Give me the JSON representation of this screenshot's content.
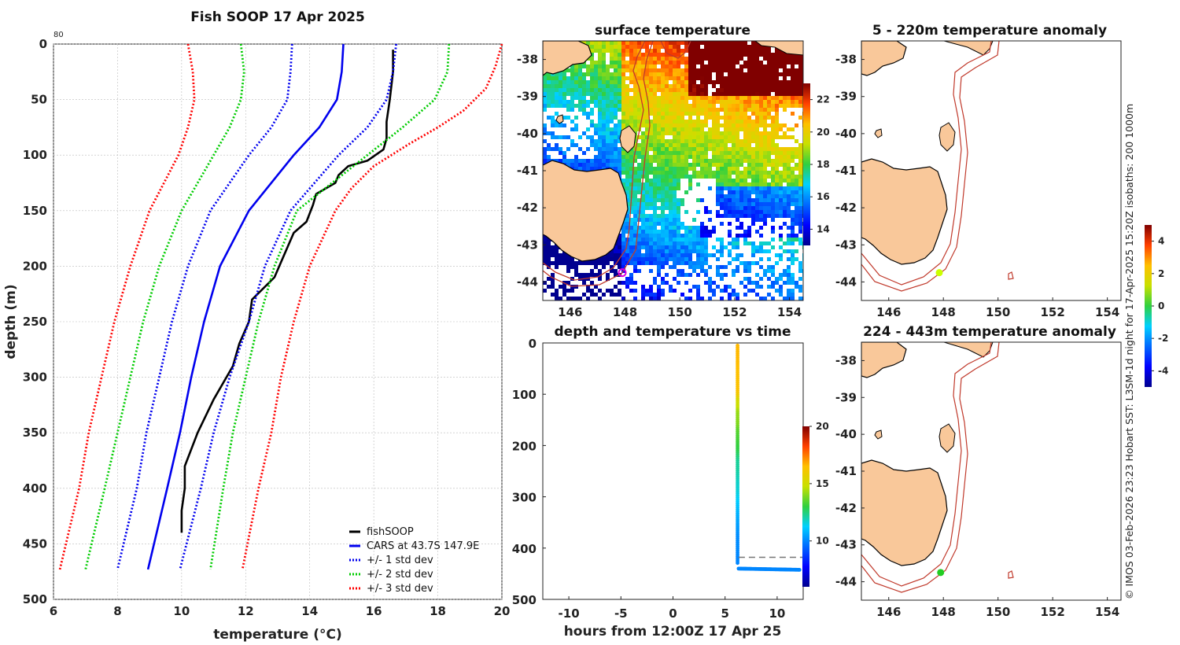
{
  "chart_data": [
    {
      "type": "line",
      "title": "Fish SOOP 17 Apr 2025",
      "xlabel": "temperature (°C)",
      "ylabel": "depth (m)",
      "xlim": [
        6,
        20
      ],
      "ylim": [
        0,
        500
      ],
      "y_reversed": true,
      "xticks": [
        "6",
        "8",
        "10",
        "12",
        "14",
        "16",
        "18",
        "20"
      ],
      "yticks": [
        "0",
        "50",
        "100",
        "150",
        "200",
        "250",
        "300",
        "350",
        "400",
        "450",
        "500"
      ],
      "corner_note": "80",
      "grid": true,
      "legend": [
        "fishSOOP",
        "CARS at 43.7S 147.9E",
        "+/- 1 std dev",
        "+/- 2 std dev",
        "+/- 3 std dev"
      ],
      "series": [
        {
          "name": "fishSOOP",
          "color": "#000000",
          "style": "solid",
          "depth": [
            5,
            25,
            50,
            70,
            85,
            95,
            105,
            110,
            118,
            125,
            135,
            145,
            160,
            170,
            190,
            210,
            230,
            250,
            270,
            290,
            320,
            350,
            380,
            400,
            420,
            440
          ],
          "temp": [
            16.6,
            16.6,
            16.5,
            16.4,
            16.4,
            16.3,
            15.8,
            15.2,
            14.9,
            14.8,
            14.2,
            14.1,
            13.9,
            13.5,
            13.2,
            12.9,
            12.2,
            12.1,
            11.8,
            11.6,
            11.0,
            10.5,
            10.1,
            10.1,
            10.0,
            10.0
          ]
        },
        {
          "name": "CARS at 43.7S 147.9E",
          "color": "#0000ee",
          "style": "solid",
          "depth": [
            0,
            25,
            50,
            75,
            100,
            150,
            200,
            250,
            300,
            350,
            400,
            473
          ],
          "temp": [
            15.05,
            15.0,
            14.85,
            14.3,
            13.5,
            12.1,
            11.2,
            10.7,
            10.3,
            9.95,
            9.55,
            8.95
          ]
        },
        {
          "name": "+1 std dev",
          "color": "#0000ee",
          "style": "dotted",
          "depth": [
            0,
            25,
            50,
            75,
            100,
            150,
            200,
            250,
            300,
            350,
            400,
            473
          ],
          "temp": [
            16.7,
            16.6,
            16.4,
            15.8,
            14.9,
            13.4,
            12.6,
            12.1,
            11.5,
            11.0,
            10.6,
            9.95
          ]
        },
        {
          "name": "-1 std dev",
          "color": "#0000ee",
          "style": "dotted",
          "depth": [
            0,
            25,
            50,
            75,
            100,
            150,
            200,
            250,
            300,
            350,
            400,
            473
          ],
          "temp": [
            13.45,
            13.4,
            13.3,
            12.8,
            12.1,
            10.9,
            10.2,
            9.7,
            9.3,
            8.9,
            8.6,
            8.0
          ]
        },
        {
          "name": "+2 std dev",
          "color": "#00cc00",
          "style": "dotted",
          "depth": [
            0,
            25,
            50,
            75,
            100,
            125,
            150,
            200,
            250,
            300,
            350,
            400,
            473
          ],
          "temp": [
            18.35,
            18.3,
            17.9,
            16.9,
            15.8,
            14.7,
            13.6,
            12.9,
            12.4,
            12.0,
            11.6,
            11.3,
            10.9
          ]
        },
        {
          "name": "-2 std dev",
          "color": "#00cc00",
          "style": "dotted",
          "depth": [
            0,
            25,
            50,
            75,
            100,
            150,
            200,
            250,
            300,
            350,
            400,
            473
          ],
          "temp": [
            11.85,
            11.95,
            11.85,
            11.5,
            11.0,
            10.0,
            9.3,
            8.8,
            8.4,
            8.0,
            7.6,
            7.0
          ]
        },
        {
          "name": "+3 std dev",
          "color": "#ff0000",
          "style": "dotted",
          "depth": [
            0,
            20,
            40,
            60,
            75,
            90,
            110,
            130,
            150,
            200,
            250,
            300,
            350,
            400,
            473
          ],
          "temp": [
            20.0,
            19.8,
            19.5,
            18.8,
            18.0,
            17.1,
            16.0,
            15.3,
            14.8,
            14.0,
            13.5,
            13.1,
            12.8,
            12.4,
            11.9
          ]
        },
        {
          "name": "-3 std dev",
          "color": "#ff0000",
          "style": "dotted",
          "depth": [
            0,
            25,
            50,
            75,
            100,
            150,
            200,
            250,
            300,
            350,
            400,
            473
          ],
          "temp": [
            10.2,
            10.35,
            10.4,
            10.2,
            9.9,
            9.0,
            8.4,
            7.9,
            7.5,
            7.1,
            6.8,
            6.2
          ]
        }
      ]
    },
    {
      "type": "heatmap",
      "title": "surface temperature",
      "xticks": [
        "146",
        "148",
        "150",
        "152",
        "154"
      ],
      "yticks": [
        "-38",
        "-39",
        "-40",
        "-41",
        "-42",
        "-43",
        "-44"
      ],
      "xlim": [
        145,
        154.5
      ],
      "ylim": [
        -44.5,
        -37.5
      ],
      "colorbar_ticks": [
        "14",
        "16",
        "18",
        "20",
        "22"
      ],
      "colorbar_range": [
        13,
        23
      ],
      "marker": {
        "lon": 147.9,
        "lat": -43.75,
        "color": "#dd00dd"
      }
    },
    {
      "type": "scatter",
      "title": "depth and temperature vs time",
      "xlabel": "hours from 12:00Z 17 Apr 25",
      "xticks": [
        "-10",
        "-5",
        "0",
        "5",
        "10"
      ],
      "yticks": [
        "0",
        "100",
        "200",
        "300",
        "400",
        "500"
      ],
      "xlim": [
        -12.5,
        12.5
      ],
      "ylim": [
        0,
        500
      ],
      "colorbar_ticks": [
        "10",
        "15",
        "20"
      ],
      "colorbar_range": [
        6,
        20
      ],
      "descent": {
        "hours": 6.2,
        "depth_start": 5,
        "depth_end": 430
      },
      "bottom": {
        "hours_start": 6.3,
        "hours_end": 12.2,
        "depth": 440
      },
      "dashed_depth": 418
    },
    {
      "type": "heatmap",
      "title": "5 - 220m temperature anomaly",
      "xticks": [
        "146",
        "148",
        "150",
        "152",
        "154"
      ],
      "yticks": [
        "-38",
        "-39",
        "-40",
        "-41",
        "-42",
        "-43",
        "-44"
      ],
      "marker": {
        "lon": 147.85,
        "lat": -43.75,
        "color": "#ccff00"
      }
    },
    {
      "type": "heatmap",
      "title": "224 - 443m temperature anomaly",
      "xticks": [
        "146",
        "148",
        "150",
        "152",
        "154"
      ],
      "yticks": [
        "-38",
        "-39",
        "-40",
        "-41",
        "-42",
        "-43",
        "-44"
      ],
      "marker": {
        "lon": 147.9,
        "lat": -43.75,
        "color": "#22cc22"
      }
    }
  ],
  "anomaly_colorbar_ticks": [
    "4",
    "2",
    "0",
    "-2",
    "-4"
  ],
  "side_note": "© IMOS 03-Feb-2026 23:23 Hobart SST: L3SM-1d night for 17-Apr-2025 15:20Z isobaths: 200  1000m",
  "colors": {
    "land": "#f9c89a",
    "coast": "#000000",
    "isobath": "#c0392b"
  }
}
